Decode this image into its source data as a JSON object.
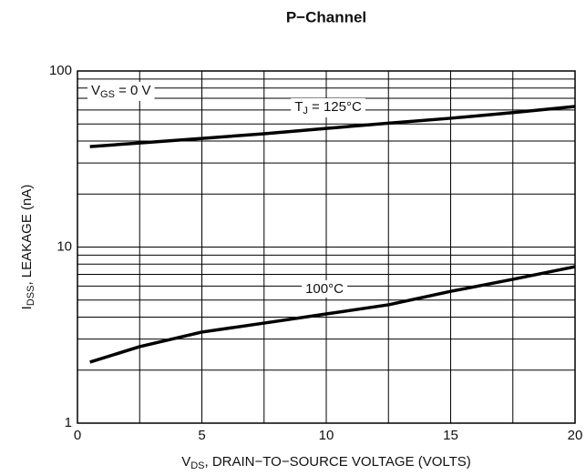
{
  "chart_data": {
    "type": "line",
    "title": "P−Channel",
    "x_label": {
      "main": "V",
      "sub": "DS",
      "rest": ", DRAIN−TO−SOURCE VOLTAGE (VOLTS)"
    },
    "y_label": {
      "main": "I",
      "sub": "DSS",
      "rest": ", LEAKAGE (nA)"
    },
    "annotation": {
      "main": "V",
      "sub": "GS",
      "rest": " = 0 V"
    },
    "x": [
      0.5,
      2.5,
      5,
      7.5,
      10,
      12.5,
      15,
      17.5,
      20
    ],
    "series": [
      {
        "label": {
          "main": "T",
          "sub": "J",
          "rest": " = 125°C"
        },
        "color": "#000000",
        "values": [
          37.2,
          39.0,
          41.4,
          44.0,
          47.2,
          50.5,
          53.9,
          58.0,
          62.9
        ]
      },
      {
        "label": {
          "rest": "100°C"
        },
        "color": "#000000",
        "values": [
          2.22,
          2.72,
          3.29,
          3.7,
          4.17,
          4.7,
          5.6,
          6.56,
          7.74
        ]
      }
    ],
    "xlim": [
      0,
      20
    ],
    "xticks": [
      0,
      5,
      10,
      15,
      20
    ],
    "ylim": [
      1,
      100
    ],
    "yticks": [
      1,
      10,
      100
    ],
    "y_log": true,
    "grid": true
  }
}
